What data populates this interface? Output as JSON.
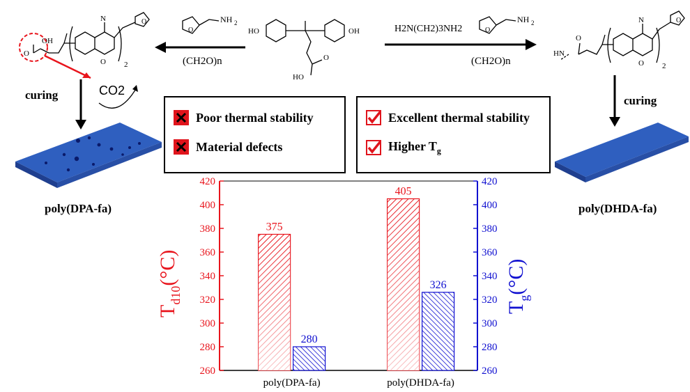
{
  "left_product": {
    "label": "poly(DPA-fa)",
    "curing_label": "curing",
    "co2_label": "CO2"
  },
  "right_product": {
    "label": "poly(DHDA-fa)",
    "curing_label": "curing"
  },
  "reagents": {
    "left_arrow_bottom": "(CH2O)n",
    "right_arrow_top": "H2N(CH2)3NH2",
    "right_arrow_bottom": "(CH2O)n"
  },
  "con_box": {
    "items": [
      {
        "label": "Poor thermal stability",
        "icon": "x-icon"
      },
      {
        "label": "Material defects",
        "icon": "x-icon"
      }
    ]
  },
  "pro_box": {
    "items": [
      {
        "label": "Excellent thermal stability",
        "icon": "check-icon"
      },
      {
        "label": "Higher T",
        "sub": "g",
        "icon": "check-icon"
      }
    ]
  },
  "colors": {
    "red": "#e8141c",
    "blue": "#1010d0",
    "slab_blue": "#2f5fbf",
    "x_red": "#e0141c"
  },
  "chart_data": {
    "type": "bar",
    "categories": [
      "poly(DPA-fa)",
      "poly(DHDA-fa)"
    ],
    "series": [
      {
        "name": "Td10",
        "axis": "left",
        "values": [
          375,
          405
        ],
        "color": "#e8141c"
      },
      {
        "name": "Tg",
        "axis": "right",
        "values": [
          280,
          326
        ],
        "color": "#1010d0"
      }
    ],
    "ylim": [
      260,
      420
    ],
    "yticks": [
      260,
      280,
      300,
      320,
      340,
      360,
      380,
      400,
      420
    ],
    "ylabel_left": {
      "main": "T",
      "sub": "d10",
      "unit": "(°C)"
    },
    "ylabel_right": {
      "main": "T",
      "sub": "g",
      "unit": "(°C)"
    }
  }
}
